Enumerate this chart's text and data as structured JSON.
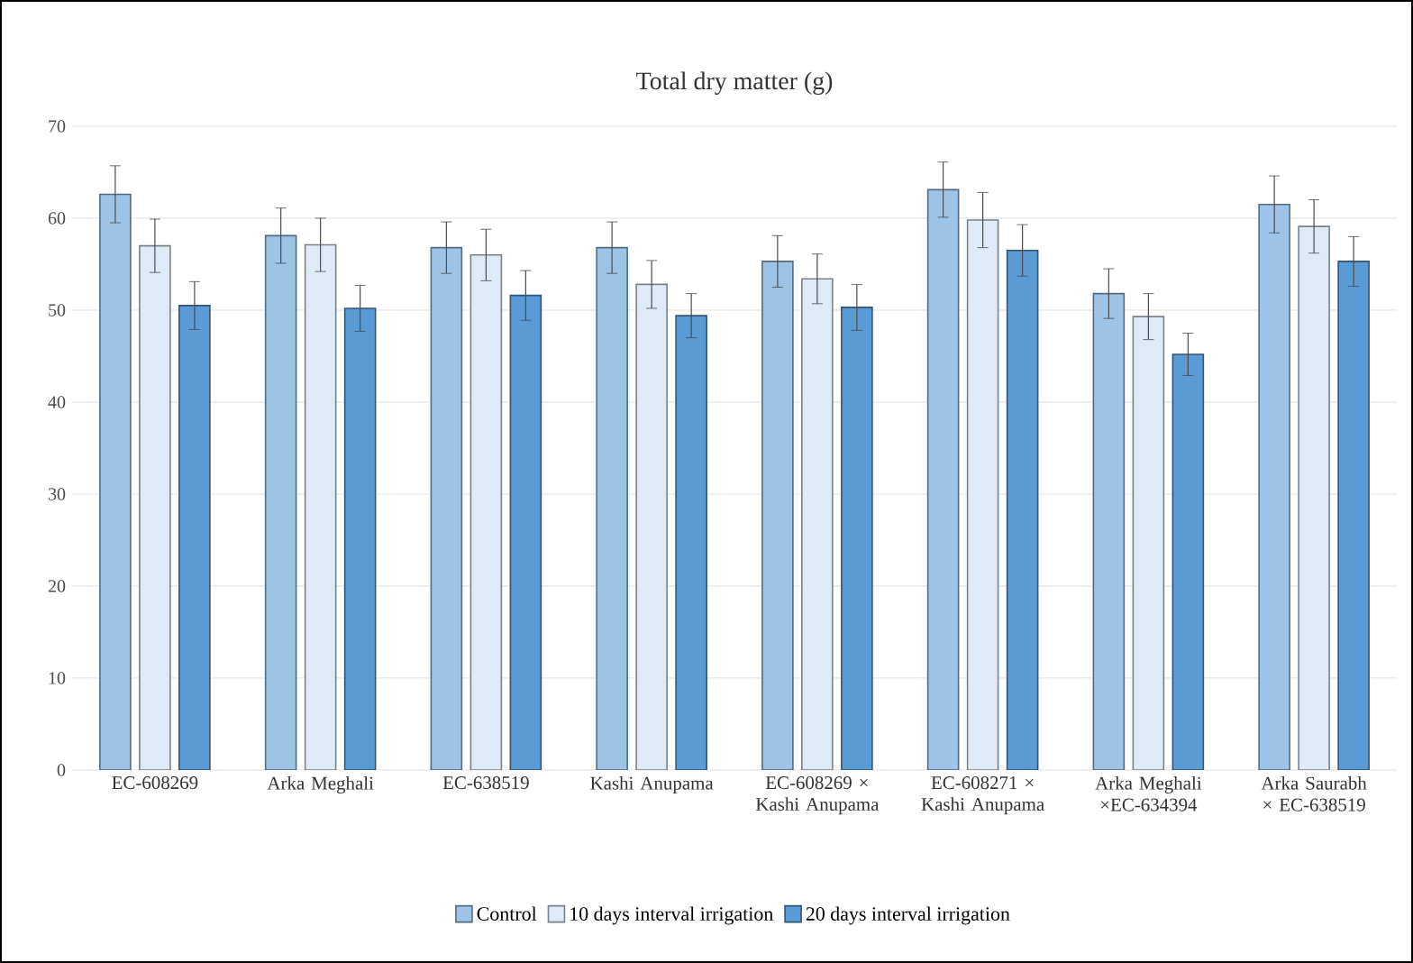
{
  "chart_data": {
    "type": "bar",
    "title": "Total dry matter (g)",
    "categories": [
      "EC-608269",
      "Arka Meghali",
      "EC-638519",
      "Kashi Anupama",
      "EC-608269 × Kashi Anupama",
      "EC-608271 × Kashi Anupama",
      "Arka Meghali ×EC-634394",
      "Arka Saurabh × EC-638519"
    ],
    "series": [
      {
        "name": "Control",
        "color": "#9dc3e6",
        "values": [
          62.6,
          58.1,
          56.8,
          56.8,
          55.3,
          63.1,
          51.8,
          61.5
        ],
        "errors": [
          3.1,
          3,
          2.8,
          2.8,
          2.8,
          3,
          2.7,
          3.1
        ]
      },
      {
        "name": "10 days interval irrigation",
        "color": "#deebf7",
        "values": [
          57.0,
          57.1,
          56.0,
          52.8,
          53.4,
          59.8,
          49.3,
          59.1
        ],
        "errors": [
          2.9,
          2.9,
          2.8,
          2.6,
          2.7,
          3,
          2.5,
          2.9
        ]
      },
      {
        "name": "20 days interval irrigation",
        "color": "#5b9bd5",
        "values": [
          50.5,
          50.2,
          51.6,
          49.4,
          50.3,
          56.5,
          45.2,
          55.3
        ],
        "errors": [
          2.6,
          2.5,
          2.7,
          2.4,
          2.5,
          2.8,
          2.3,
          2.7
        ]
      }
    ],
    "ylim": [
      0,
      70
    ],
    "yticks": [
      0,
      10,
      20,
      30,
      40,
      50,
      60,
      70
    ],
    "grid": "y",
    "legend": "bottom"
  }
}
